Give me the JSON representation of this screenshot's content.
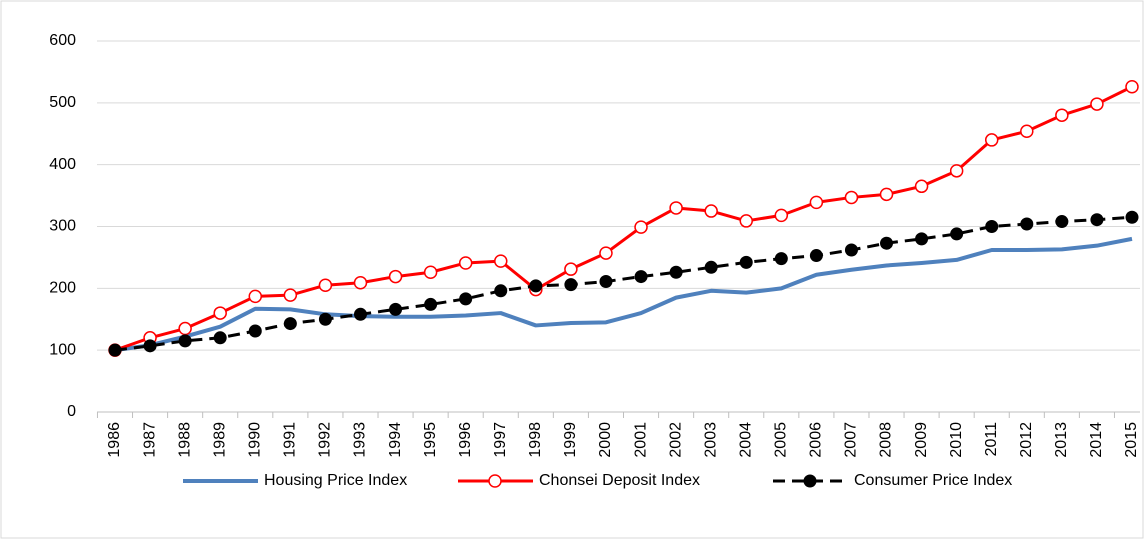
{
  "chart_data": {
    "type": "line",
    "categories": [
      "1986",
      "1987",
      "1988",
      "1989",
      "1990",
      "1991",
      "1992",
      "1993",
      "1994",
      "1995",
      "1996",
      "1997",
      "1998",
      "1999",
      "2000",
      "2001",
      "2002",
      "2003",
      "2004",
      "2005",
      "2006",
      "2007",
      "2008",
      "2009",
      "2010",
      "2011",
      "2012",
      "2013",
      "2014",
      "2015"
    ],
    "series": [
      {
        "name": "Housing Price Index",
        "color": "#4f81bd",
        "dash": "solid",
        "marker": "none",
        "values": [
          100,
          108,
          122,
          138,
          167,
          166,
          158,
          155,
          154,
          154,
          156,
          160,
          140,
          144,
          145,
          160,
          185,
          196,
          193,
          200,
          222,
          230,
          237,
          241,
          246,
          262,
          262,
          263,
          269,
          280
        ]
      },
      {
        "name": "Chonsei Deposit Index",
        "color": "#ff0000",
        "dash": "solid",
        "marker": "open",
        "values": [
          100,
          120,
          135,
          160,
          187,
          189,
          205,
          209,
          219,
          226,
          241,
          244,
          198,
          231,
          257,
          299,
          330,
          325,
          309,
          318,
          339,
          347,
          352,
          365,
          390,
          440,
          454,
          480,
          498,
          526
        ]
      },
      {
        "name": "Consumer Price Index",
        "color": "#000000",
        "dash": "dashed",
        "marker": "filled",
        "values": [
          100,
          107,
          115,
          120,
          131,
          143,
          150,
          158,
          166,
          174,
          183,
          196,
          204,
          206,
          211,
          219,
          226,
          234,
          242,
          248,
          253,
          262,
          273,
          280,
          288,
          300,
          304,
          308,
          311,
          315
        ]
      }
    ],
    "ylim": [
      0,
      600
    ],
    "yticks": [
      0,
      100,
      200,
      300,
      400,
      500,
      600
    ],
    "grid": true,
    "legend": "bottom"
  }
}
